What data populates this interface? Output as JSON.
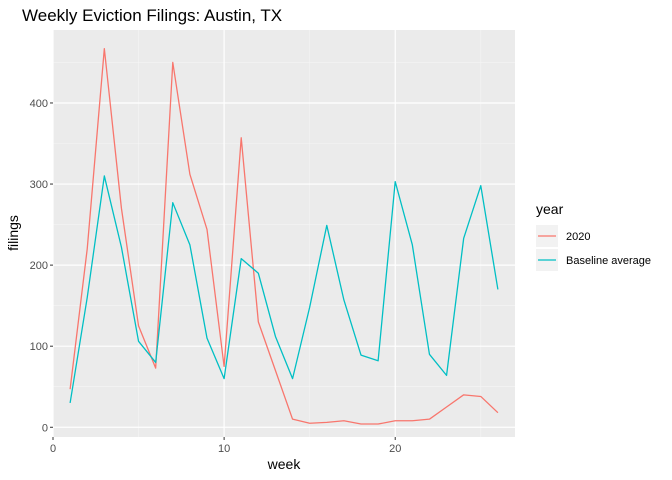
{
  "chart_data": {
    "type": "line",
    "title": "Weekly Eviction Filings: Austin, TX",
    "xlabel": "week",
    "ylabel": "filings",
    "xlim": [
      0,
      27
    ],
    "ylim": [
      -12,
      490
    ],
    "x_ticks": [
      0,
      10,
      20
    ],
    "y_ticks": [
      0,
      100,
      200,
      300,
      400
    ],
    "grid": true,
    "legend": {
      "title": "year",
      "position": "right"
    },
    "series": [
      {
        "name": "2020",
        "color": "#F8766D",
        "x": [
          1,
          2,
          3,
          4,
          5,
          6,
          7,
          8,
          9,
          10,
          11,
          12,
          13,
          14,
          15,
          16,
          17,
          18,
          19,
          20,
          21,
          22,
          23,
          24,
          25,
          26
        ],
        "y": [
          47,
          220,
          467,
          270,
          125,
          73,
          450,
          312,
          244,
          75,
          357,
          130,
          70,
          10,
          5,
          6,
          8,
          4,
          4,
          8,
          8,
          10,
          25,
          40,
          38,
          18
        ]
      },
      {
        "name": "Baseline average",
        "color": "#00BFC4",
        "x": [
          1,
          2,
          3,
          4,
          5,
          6,
          7,
          8,
          9,
          10,
          11,
          12,
          13,
          14,
          15,
          16,
          17,
          18,
          19,
          20,
          21,
          22,
          23,
          24,
          25,
          26
        ],
        "y": [
          30,
          160,
          310,
          222,
          106,
          80,
          277,
          225,
          110,
          60,
          208,
          190,
          112,
          60,
          148,
          249,
          157,
          89,
          82,
          303,
          225,
          90,
          64,
          233,
          298,
          170
        ]
      }
    ]
  }
}
